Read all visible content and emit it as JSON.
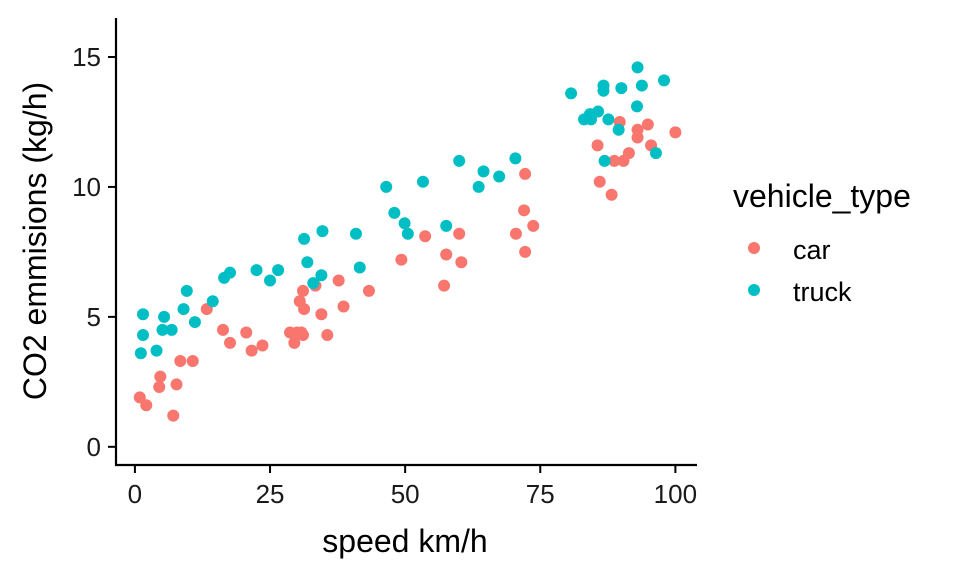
{
  "chart_data": {
    "type": "scatter",
    "title": "",
    "xlabel": "speed km/h",
    "ylabel": "CO2 emmisions (kg/h)",
    "xlim": [
      -3.5,
      104
    ],
    "ylim": [
      -0.7,
      16.5
    ],
    "xticks": [
      0,
      25,
      50,
      75,
      100
    ],
    "yticks": [
      0,
      5,
      10,
      15
    ],
    "grid": false,
    "legend": {
      "title": "vehicle_type",
      "placement": "right"
    },
    "series": [
      {
        "name": "car",
        "color": "#F8766D",
        "points": [
          [
            0.9,
            1.9
          ],
          [
            2.1,
            1.6
          ],
          [
            4.7,
            2.7
          ],
          [
            4.5,
            2.3
          ],
          [
            7.1,
            1.2
          ],
          [
            7.7,
            2.4
          ],
          [
            8.4,
            3.3
          ],
          [
            10.7,
            3.3
          ],
          [
            13.3,
            5.3
          ],
          [
            16.3,
            4.5
          ],
          [
            17.6,
            4.0
          ],
          [
            20.6,
            4.4
          ],
          [
            21.6,
            3.7
          ],
          [
            23.6,
            3.9
          ],
          [
            28.7,
            4.4
          ],
          [
            29.5,
            4.0
          ],
          [
            30.0,
            4.4
          ],
          [
            30.8,
            4.4
          ],
          [
            31.1,
            4.3
          ],
          [
            30.5,
            5.6
          ],
          [
            31.1,
            6.0
          ],
          [
            31.3,
            5.3
          ],
          [
            33.4,
            6.2
          ],
          [
            34.5,
            5.1
          ],
          [
            35.6,
            4.3
          ],
          [
            37.7,
            6.4
          ],
          [
            38.6,
            5.4
          ],
          [
            43.3,
            6.0
          ],
          [
            49.3,
            7.2
          ],
          [
            53.7,
            8.1
          ],
          [
            57.6,
            7.4
          ],
          [
            60.0,
            8.2
          ],
          [
            60.4,
            7.1
          ],
          [
            57.2,
            6.2
          ],
          [
            72.2,
            10.5
          ],
          [
            72.0,
            9.1
          ],
          [
            73.7,
            8.5
          ],
          [
            70.5,
            8.2
          ],
          [
            72.2,
            7.5
          ],
          [
            89.7,
            12.5
          ],
          [
            93.0,
            12.2
          ],
          [
            94.9,
            12.4
          ],
          [
            100.0,
            12.1
          ],
          [
            93.0,
            11.9
          ],
          [
            95.5,
            11.6
          ],
          [
            85.6,
            11.6
          ],
          [
            91.4,
            11.3
          ],
          [
            88.7,
            11.0
          ],
          [
            90.4,
            11.0
          ],
          [
            86.0,
            10.2
          ],
          [
            88.2,
            9.7
          ]
        ]
      },
      {
        "name": "truck",
        "color": "#00BFC4",
        "points": [
          [
            1.5,
            5.1
          ],
          [
            1.5,
            4.3
          ],
          [
            1.1,
            3.6
          ],
          [
            4.0,
            3.7
          ],
          [
            5.4,
            5.0
          ],
          [
            5.1,
            4.5
          ],
          [
            6.8,
            4.5
          ],
          [
            9.0,
            5.3
          ],
          [
            9.6,
            6.0
          ],
          [
            11.1,
            4.8
          ],
          [
            14.4,
            5.6
          ],
          [
            16.5,
            6.5
          ],
          [
            17.6,
            6.7
          ],
          [
            22.5,
            6.8
          ],
          [
            25.0,
            6.4
          ],
          [
            26.5,
            6.8
          ],
          [
            31.3,
            8.0
          ],
          [
            34.7,
            8.3
          ],
          [
            31.9,
            7.1
          ],
          [
            34.5,
            6.6
          ],
          [
            33.0,
            6.3
          ],
          [
            40.9,
            8.2
          ],
          [
            41.6,
            6.9
          ],
          [
            46.5,
            10.0
          ],
          [
            48.0,
            9.0
          ],
          [
            49.9,
            8.6
          ],
          [
            50.5,
            8.2
          ],
          [
            53.3,
            10.2
          ],
          [
            57.6,
            8.5
          ],
          [
            60.0,
            11.0
          ],
          [
            63.6,
            10.0
          ],
          [
            64.5,
            10.6
          ],
          [
            67.4,
            10.4
          ],
          [
            70.4,
            11.1
          ],
          [
            80.7,
            13.6
          ],
          [
            86.7,
            13.9
          ],
          [
            86.7,
            13.7
          ],
          [
            90.0,
            13.8
          ],
          [
            93.0,
            14.6
          ],
          [
            93.8,
            13.9
          ],
          [
            97.9,
            14.1
          ],
          [
            92.9,
            13.1
          ],
          [
            83.1,
            12.6
          ],
          [
            84.2,
            12.8
          ],
          [
            84.4,
            12.6
          ],
          [
            85.7,
            12.9
          ],
          [
            87.6,
            12.6
          ],
          [
            89.5,
            12.2
          ],
          [
            86.9,
            11.0
          ],
          [
            96.4,
            11.3
          ]
        ]
      }
    ]
  }
}
